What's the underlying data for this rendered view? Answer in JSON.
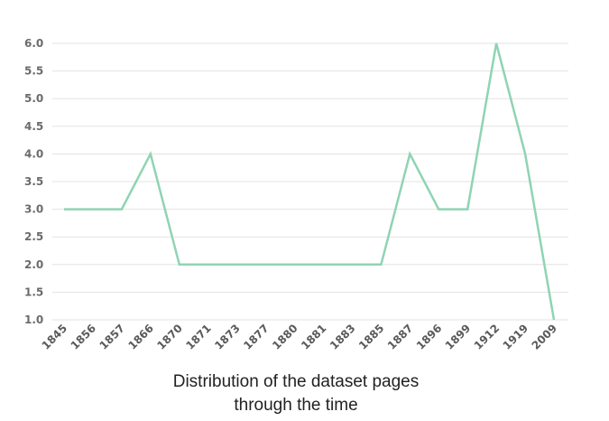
{
  "chart_data": {
    "type": "line",
    "title": "",
    "xlabel": "",
    "ylabel": "",
    "caption": [
      "Distribution of the dataset pages",
      "through the time"
    ],
    "categories": [
      "1845",
      "1856",
      "1857",
      "1866",
      "1870",
      "1871",
      "1873",
      "1877",
      "1880",
      "1881",
      "1883",
      "1885",
      "1887",
      "1896",
      "1899",
      "1912",
      "1919",
      "2009"
    ],
    "values": [
      3,
      3,
      3,
      4,
      2,
      2,
      2,
      2,
      2,
      2,
      2,
      2,
      4,
      3,
      3,
      6,
      4,
      1
    ],
    "ylim": [
      1.0,
      6.0
    ],
    "yticks": [
      "1.0",
      "1.5",
      "2.0",
      "2.5",
      "3.0",
      "3.5",
      "4.0",
      "4.5",
      "5.0",
      "5.5",
      "6.0"
    ],
    "grid": true,
    "legend": "none",
    "color": "#8fd4b3"
  }
}
